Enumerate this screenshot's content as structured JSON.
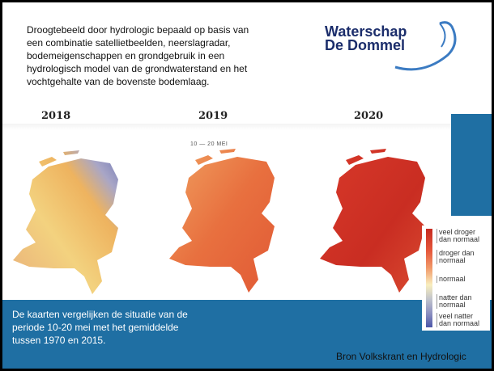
{
  "description": [
    "Droogtebeeld door hydrologic bepaald op basis van",
    "een combinatie satellietbeelden, neerslagradar,",
    "bodemeigenschappen en grondgebruik in een",
    "hydrologisch model van de grondwaterstand en het",
    "vochtgehalte van de bovenste bodemlaag."
  ],
  "logo": [
    "Waterschap",
    "De Dommel"
  ],
  "years": [
    "2018",
    "2019",
    "2020"
  ],
  "period": "10 — 20 MEI",
  "legend": [
    [
      "veel droger",
      "dan normaal"
    ],
    [
      "droger dan",
      "normaal"
    ],
    [
      "normaal"
    ],
    [
      "natter dan",
      "normaal"
    ],
    [
      "veel natter",
      "dan normaal"
    ]
  ],
  "note": [
    "De kaarten vergelijken de situatie van de",
    "periode 10-20 mei met het gemiddelde",
    "tussen 1970 en 2015."
  ],
  "source": "Bron Volkskrant en Hydrologic"
}
